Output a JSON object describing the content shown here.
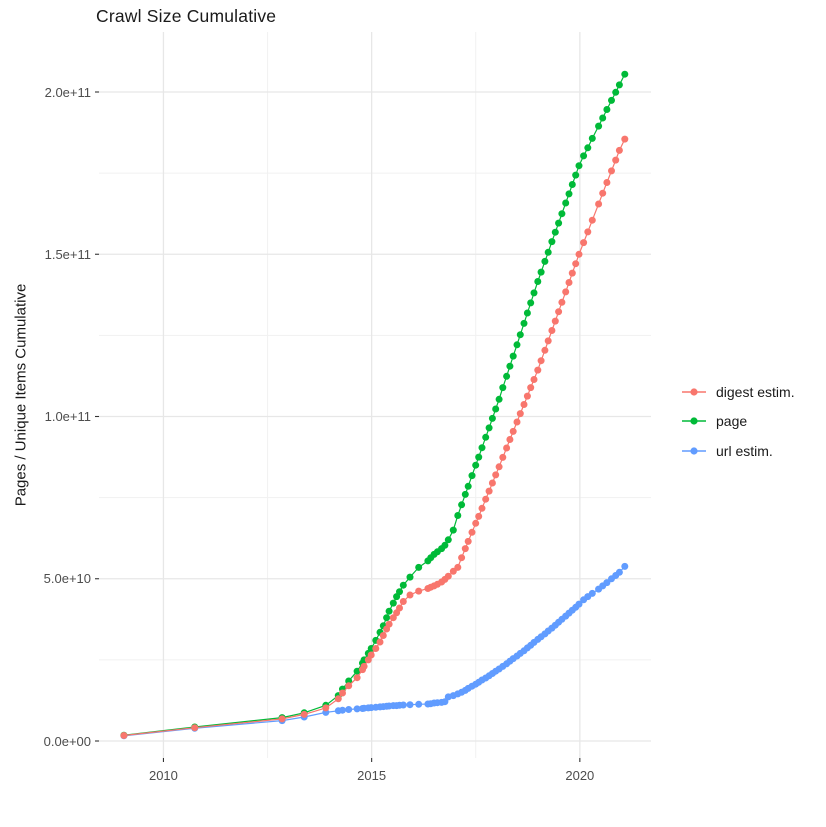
{
  "title": "Crawl Size Cumulative",
  "chart_data": {
    "type": "line",
    "title": "Crawl Size Cumulative",
    "xlabel": "",
    "ylabel": "Pages / Unique Items Cumulative",
    "legend_position": "right",
    "grid": true,
    "value_note": "y values stored in billions; actual value = y * 1e9",
    "x_axis": {
      "range": [
        2008.45,
        2021.7
      ],
      "major_ticks": [
        2010,
        2015,
        2020
      ],
      "tick_labels": [
        "2010",
        "2015",
        "2020"
      ],
      "minor_ticks": [
        2012.5,
        2017.5
      ]
    },
    "y_axis": {
      "range_billions": [
        -5,
        218
      ],
      "major_ticks_billions": [
        0,
        50,
        100,
        150,
        200
      ],
      "tick_labels": [
        "0.0e+00",
        "5.0e+10",
        "1.0e+11",
        "1.5e+11",
        "2.0e+11"
      ],
      "minor_ticks_billions": [
        25,
        75,
        125,
        175
      ]
    },
    "series": [
      {
        "name": "digest estim.",
        "color": "#F8766D",
        "points": [
          [
            2009.05,
            1.7
          ],
          [
            2010.75,
            4.1
          ],
          [
            2012.85,
            6.8
          ],
          [
            2013.38,
            8.2
          ],
          [
            2013.9,
            10.2
          ],
          [
            2014.2,
            13.0
          ],
          [
            2014.3,
            14.8
          ],
          [
            2014.45,
            17.0
          ],
          [
            2014.65,
            19.5
          ],
          [
            2014.78,
            22.0
          ],
          [
            2014.82,
            23.0
          ],
          [
            2014.92,
            25.0
          ],
          [
            2014.99,
            26.5
          ],
          [
            2015.1,
            28.5
          ],
          [
            2015.2,
            30.5
          ],
          [
            2015.28,
            32.5
          ],
          [
            2015.36,
            34.5
          ],
          [
            2015.42,
            36.0
          ],
          [
            2015.52,
            38.0
          ],
          [
            2015.6,
            39.5
          ],
          [
            2015.67,
            41.0
          ],
          [
            2015.76,
            43.0
          ],
          [
            2015.92,
            45.0
          ],
          [
            2016.13,
            46.2
          ],
          [
            2016.35,
            47.0
          ],
          [
            2016.42,
            47.4
          ],
          [
            2016.5,
            47.8
          ],
          [
            2016.58,
            48.3
          ],
          [
            2016.68,
            49.0
          ],
          [
            2016.76,
            49.8
          ],
          [
            2016.84,
            50.8
          ],
          [
            2016.96,
            52.3
          ],
          [
            2017.07,
            53.5
          ],
          [
            2017.16,
            56.5
          ],
          [
            2017.25,
            59.3
          ],
          [
            2017.32,
            61.5
          ],
          [
            2017.41,
            64.3
          ],
          [
            2017.5,
            67.1
          ],
          [
            2017.57,
            69.2
          ],
          [
            2017.65,
            71.7
          ],
          [
            2017.74,
            74.5
          ],
          [
            2017.82,
            77.0
          ],
          [
            2017.9,
            79.5
          ],
          [
            2017.98,
            82.0
          ],
          [
            2018.06,
            84.5
          ],
          [
            2018.15,
            87.4
          ],
          [
            2018.24,
            90.3
          ],
          [
            2018.32,
            92.9
          ],
          [
            2018.4,
            95.4
          ],
          [
            2018.49,
            98.3
          ],
          [
            2018.57,
            100.9
          ],
          [
            2018.66,
            103.7
          ],
          [
            2018.74,
            106.3
          ],
          [
            2018.82,
            108.9
          ],
          [
            2018.9,
            111.4
          ],
          [
            2018.99,
            114.3
          ],
          [
            2019.07,
            117.2
          ],
          [
            2019.16,
            120.4
          ],
          [
            2019.24,
            123.3
          ],
          [
            2019.33,
            126.5
          ],
          [
            2019.41,
            129.4
          ],
          [
            2019.49,
            132.3
          ],
          [
            2019.57,
            135.2
          ],
          [
            2019.66,
            138.4
          ],
          [
            2019.74,
            141.3
          ],
          [
            2019.82,
            144.2
          ],
          [
            2019.9,
            147.1
          ],
          [
            2019.98,
            150.0
          ],
          [
            2020.09,
            153.6
          ],
          [
            2020.19,
            156.9
          ],
          [
            2020.3,
            160.5
          ],
          [
            2020.45,
            165.5
          ],
          [
            2020.55,
            168.8
          ],
          [
            2020.65,
            172.1
          ],
          [
            2020.76,
            175.7
          ],
          [
            2020.86,
            179.0
          ],
          [
            2020.95,
            182.0
          ],
          [
            2021.08,
            185.5
          ]
        ]
      },
      {
        "name": "page",
        "color": "#00BA38",
        "points": [
          [
            2009.05,
            1.8
          ],
          [
            2010.75,
            4.3
          ],
          [
            2012.85,
            7.2
          ],
          [
            2013.38,
            8.7
          ],
          [
            2013.9,
            11.0
          ],
          [
            2014.2,
            14.0
          ],
          [
            2014.3,
            16.0
          ],
          [
            2014.45,
            18.5
          ],
          [
            2014.65,
            21.5
          ],
          [
            2014.78,
            24.0
          ],
          [
            2014.82,
            25.0
          ],
          [
            2014.92,
            27.0
          ],
          [
            2014.99,
            28.5
          ],
          [
            2015.1,
            31.0
          ],
          [
            2015.2,
            33.5
          ],
          [
            2015.28,
            35.5
          ],
          [
            2015.36,
            38.0
          ],
          [
            2015.42,
            40.0
          ],
          [
            2015.52,
            42.5
          ],
          [
            2015.6,
            44.5
          ],
          [
            2015.67,
            46.0
          ],
          [
            2015.76,
            48.0
          ],
          [
            2015.92,
            50.5
          ],
          [
            2016.13,
            53.5
          ],
          [
            2016.35,
            55.5
          ],
          [
            2016.42,
            56.5
          ],
          [
            2016.5,
            57.5
          ],
          [
            2016.58,
            58.3
          ],
          [
            2016.68,
            59.3
          ],
          [
            2016.76,
            60.3
          ],
          [
            2016.84,
            62.0
          ],
          [
            2016.96,
            65.0
          ],
          [
            2017.07,
            69.5
          ],
          [
            2017.16,
            72.8
          ],
          [
            2017.25,
            76.0
          ],
          [
            2017.32,
            78.5
          ],
          [
            2017.41,
            81.8
          ],
          [
            2017.5,
            85.0
          ],
          [
            2017.57,
            87.5
          ],
          [
            2017.65,
            90.4
          ],
          [
            2017.74,
            93.6
          ],
          [
            2017.82,
            96.5
          ],
          [
            2017.9,
            99.4
          ],
          [
            2017.98,
            102.3
          ],
          [
            2018.06,
            105.3
          ],
          [
            2018.15,
            108.9
          ],
          [
            2018.24,
            112.4
          ],
          [
            2018.32,
            115.5
          ],
          [
            2018.4,
            118.6
          ],
          [
            2018.49,
            122.1
          ],
          [
            2018.57,
            125.2
          ],
          [
            2018.66,
            128.7
          ],
          [
            2018.74,
            131.9
          ],
          [
            2018.82,
            135.0
          ],
          [
            2018.9,
            138.1
          ],
          [
            2018.99,
            141.6
          ],
          [
            2019.07,
            144.5
          ],
          [
            2019.16,
            147.8
          ],
          [
            2019.24,
            150.6
          ],
          [
            2019.33,
            153.9
          ],
          [
            2019.41,
            156.8
          ],
          [
            2019.49,
            159.6
          ],
          [
            2019.57,
            162.5
          ],
          [
            2019.66,
            165.8
          ],
          [
            2019.74,
            168.6
          ],
          [
            2019.82,
            171.5
          ],
          [
            2019.9,
            174.4
          ],
          [
            2019.98,
            177.3
          ],
          [
            2020.09,
            180.3
          ],
          [
            2020.19,
            182.8
          ],
          [
            2020.3,
            185.7
          ],
          [
            2020.45,
            189.5
          ],
          [
            2020.55,
            192.0
          ],
          [
            2020.65,
            194.6
          ],
          [
            2020.76,
            197.4
          ],
          [
            2020.86,
            199.9
          ],
          [
            2020.95,
            202.2
          ],
          [
            2021.08,
            205.5
          ]
        ]
      },
      {
        "name": "url estim.",
        "color": "#619CFF",
        "points": [
          [
            2009.05,
            1.6
          ],
          [
            2010.75,
            3.9
          ],
          [
            2012.85,
            6.3
          ],
          [
            2013.38,
            7.4
          ],
          [
            2013.9,
            8.8
          ],
          [
            2014.2,
            9.3
          ],
          [
            2014.3,
            9.5
          ],
          [
            2014.45,
            9.7
          ],
          [
            2014.65,
            9.9
          ],
          [
            2014.78,
            10.0
          ],
          [
            2014.82,
            10.1
          ],
          [
            2014.92,
            10.2
          ],
          [
            2014.99,
            10.3
          ],
          [
            2015.1,
            10.4
          ],
          [
            2015.2,
            10.5
          ],
          [
            2015.28,
            10.6
          ],
          [
            2015.36,
            10.7
          ],
          [
            2015.42,
            10.8
          ],
          [
            2015.52,
            10.9
          ],
          [
            2015.6,
            10.9
          ],
          [
            2015.67,
            11.0
          ],
          [
            2015.76,
            11.1
          ],
          [
            2015.92,
            11.2
          ],
          [
            2016.13,
            11.3
          ],
          [
            2016.35,
            11.4
          ],
          [
            2016.42,
            11.5
          ],
          [
            2016.5,
            11.7
          ],
          [
            2016.58,
            11.8
          ],
          [
            2016.68,
            11.9
          ],
          [
            2016.76,
            12.1
          ],
          [
            2016.84,
            13.6
          ],
          [
            2016.96,
            14.0
          ],
          [
            2017.07,
            14.5
          ],
          [
            2017.16,
            15.0
          ],
          [
            2017.25,
            15.6
          ],
          [
            2017.32,
            16.2
          ],
          [
            2017.41,
            16.9
          ],
          [
            2017.5,
            17.5
          ],
          [
            2017.57,
            18.1
          ],
          [
            2017.65,
            18.8
          ],
          [
            2017.74,
            19.4
          ],
          [
            2017.82,
            20.1
          ],
          [
            2017.9,
            20.8
          ],
          [
            2017.98,
            21.5
          ],
          [
            2018.06,
            22.2
          ],
          [
            2018.15,
            23.0
          ],
          [
            2018.24,
            23.8
          ],
          [
            2018.32,
            24.6
          ],
          [
            2018.4,
            25.4
          ],
          [
            2018.49,
            26.2
          ],
          [
            2018.57,
            27.0
          ],
          [
            2018.66,
            27.8
          ],
          [
            2018.74,
            28.7
          ],
          [
            2018.82,
            29.5
          ],
          [
            2018.9,
            30.4
          ],
          [
            2018.99,
            31.3
          ],
          [
            2019.07,
            32.1
          ],
          [
            2019.16,
            33.0
          ],
          [
            2019.24,
            33.9
          ],
          [
            2019.33,
            34.8
          ],
          [
            2019.41,
            35.7
          ],
          [
            2019.49,
            36.6
          ],
          [
            2019.57,
            37.5
          ],
          [
            2019.66,
            38.5
          ],
          [
            2019.74,
            39.4
          ],
          [
            2019.82,
            40.3
          ],
          [
            2019.9,
            41.2
          ],
          [
            2019.98,
            42.2
          ],
          [
            2020.09,
            43.5
          ],
          [
            2020.19,
            44.5
          ],
          [
            2020.3,
            45.5
          ],
          [
            2020.45,
            46.8
          ],
          [
            2020.55,
            47.8
          ],
          [
            2020.65,
            48.8
          ],
          [
            2020.76,
            50.0
          ],
          [
            2020.86,
            51.0
          ],
          [
            2020.95,
            52.0
          ],
          [
            2021.08,
            53.8
          ]
        ]
      }
    ]
  },
  "styles": {
    "background": "#FFFFFF",
    "grid_major": "#E7E7E7",
    "grid_minor": "#F1F1F1",
    "tick_mark": "#333333",
    "tick_label": "#4D4D4D",
    "text": "#1A1A1A"
  }
}
